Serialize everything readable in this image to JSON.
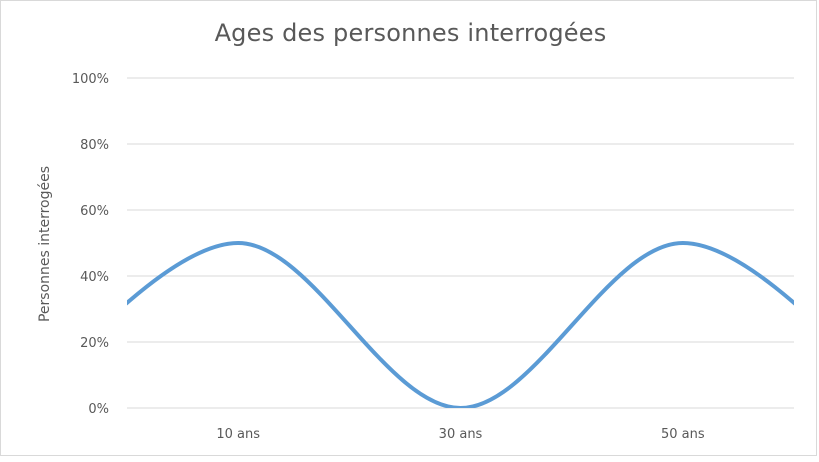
{
  "chart_data": {
    "type": "line",
    "title": "Ages des personnes interrogées",
    "xlabel": "",
    "ylabel": "Personnes interrogées",
    "categories": [
      "10 ans",
      "30 ans",
      "50 ans"
    ],
    "y_ticks": [
      "0%",
      "20%",
      "40%",
      "60%",
      "80%",
      "100%"
    ],
    "ylim": [
      0,
      1
    ],
    "grid": true,
    "legend": "none",
    "series": [
      {
        "values": [
          0.5,
          0,
          0.5
        ],
        "color": "#5b9bd5"
      }
    ]
  }
}
